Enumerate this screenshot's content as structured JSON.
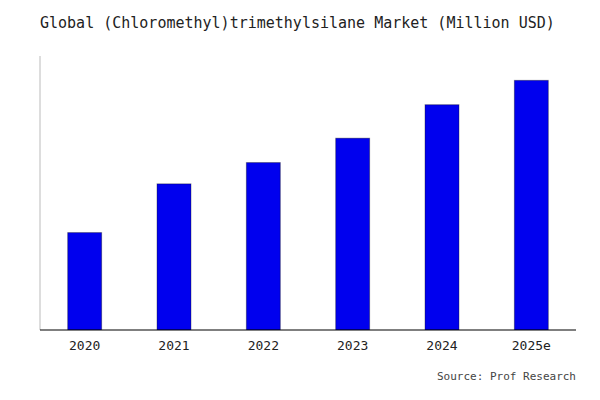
{
  "chart_data": {
    "type": "bar",
    "title": "Global (Chloromethyl)trimethylsilane Market (Million USD)",
    "categories": [
      "2020",
      "2021",
      "2022",
      "2023",
      "2024",
      "2025e"
    ],
    "values": [
      32,
      48,
      55,
      63,
      74,
      82
    ],
    "color": "#0000EE",
    "ylim": [
      0,
      90
    ],
    "grid": false,
    "tick_labels": "x",
    "source": "Source: Prof Research"
  }
}
